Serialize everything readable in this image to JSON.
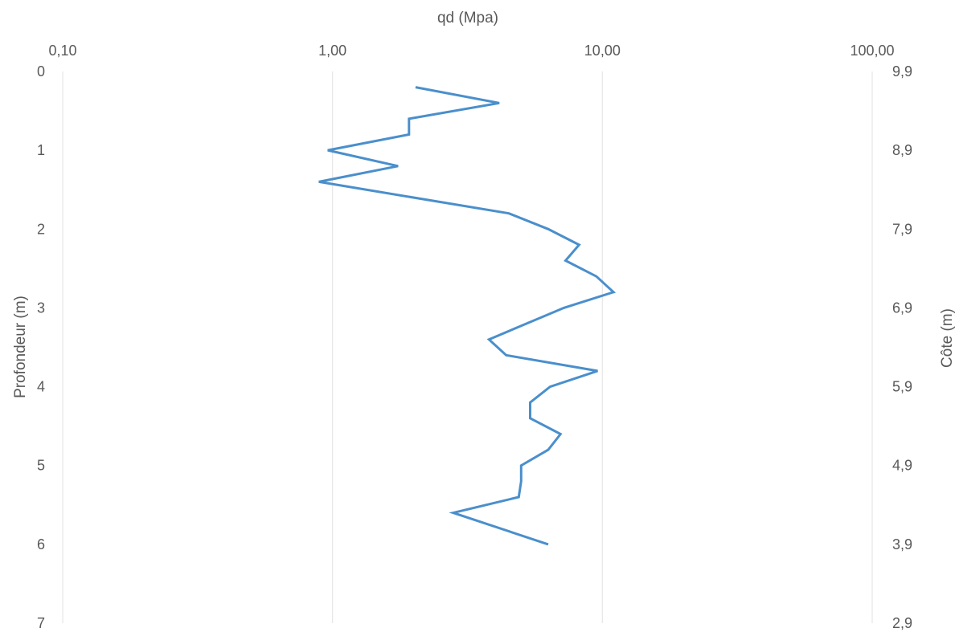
{
  "chart_data": {
    "type": "line",
    "title": "",
    "xlabel": "qd (Mpa)",
    "ylabel": "Profondeur (m)",
    "y2label": "Côte (m)",
    "x_scale": "log",
    "xlim": [
      0.1,
      100
    ],
    "ylim": [
      0,
      7
    ],
    "y_inverted": true,
    "x_axis_position": "top",
    "grid": "vertical",
    "x_tick_labels": [
      "0,10",
      "1,00",
      "10,00",
      "100,00"
    ],
    "x_tick_values": [
      0.1,
      1,
      10,
      100
    ],
    "y_tick_labels": [
      "0",
      "1",
      "2",
      "3",
      "4",
      "5",
      "6",
      "7"
    ],
    "y_tick_values": [
      0,
      1,
      2,
      3,
      4,
      5,
      6,
      7
    ],
    "y2_tick_labels": [
      "9,9",
      "8,9",
      "7,9",
      "6,9",
      "5,9",
      "4,9",
      "3,9",
      "2,9"
    ],
    "series": [
      {
        "color": "#4a8fcc",
        "x": [
          2.03,
          4.15,
          1.92,
          1.92,
          0.96,
          1.75,
          0.89,
          4.5,
          6.3,
          8.2,
          7.3,
          9.5,
          11.0,
          7.2,
          3.8,
          4.4,
          9.6,
          6.4,
          5.4,
          5.4,
          7.0,
          6.3,
          5.0,
          5.0,
          4.9,
          2.8,
          6.3
        ],
        "y": [
          0.2,
          0.4,
          0.6,
          0.8,
          1.0,
          1.2,
          1.4,
          1.8,
          2.0,
          2.2,
          2.4,
          2.6,
          2.8,
          3.0,
          3.4,
          3.6,
          3.8,
          4.0,
          4.2,
          4.4,
          4.6,
          4.8,
          5.0,
          5.2,
          5.4,
          5.6,
          6.0
        ]
      }
    ]
  }
}
